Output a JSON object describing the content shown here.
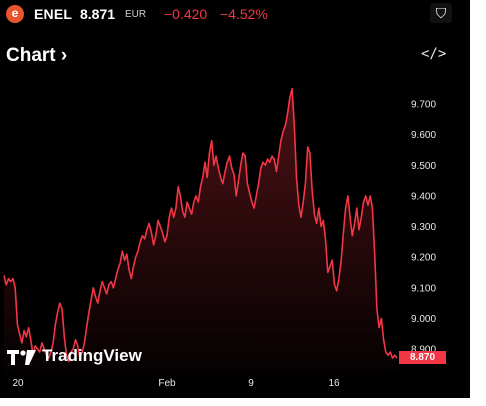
{
  "ticker": {
    "logo_letter": "e",
    "symbol": "ENEL",
    "price": "8.871",
    "currency": "EUR",
    "change": "−0.420",
    "change_pct": "−4.52%",
    "gem_icon": "⛉"
  },
  "chart_header": {
    "title": "Chart",
    "chevron": "›",
    "embed_label": "</>"
  },
  "branding": "TradingView",
  "last_price_tag": "8.870",
  "colors": {
    "background": "#000000",
    "line": "#f23645",
    "negative": "#f23645",
    "logo": "#e8542d"
  },
  "chart_data": {
    "type": "area",
    "ylim": [
      8.84,
      9.76
    ],
    "yticks": [
      "9.700",
      "9.600",
      "9.500",
      "9.400",
      "9.300",
      "9.200",
      "9.100",
      "9.000",
      "8.900"
    ],
    "xticks": [
      "20",
      "Feb",
      "9",
      "16"
    ],
    "series": [
      {
        "values": [
          9.14,
          9.11,
          9.13,
          9.12,
          9.13,
          9.1,
          8.98,
          8.95,
          8.92,
          8.96,
          8.94,
          8.97,
          8.93,
          8.88,
          8.91,
          8.9,
          8.89,
          8.92,
          8.9,
          8.88,
          8.87,
          8.89,
          8.92,
          8.98,
          9.02,
          9.05,
          9.03,
          8.94,
          8.88,
          8.86,
          8.89,
          8.9,
          8.93,
          8.91,
          8.87,
          8.89,
          8.92,
          8.97,
          9.02,
          9.06,
          9.1,
          9.07,
          9.05,
          9.09,
          9.12,
          9.1,
          9.08,
          9.11,
          9.12,
          9.1,
          9.13,
          9.16,
          9.18,
          9.22,
          9.19,
          9.21,
          9.16,
          9.13,
          9.17,
          9.2,
          9.22,
          9.25,
          9.27,
          9.26,
          9.29,
          9.31,
          9.28,
          9.24,
          9.27,
          9.32,
          9.3,
          9.28,
          9.25,
          9.27,
          9.33,
          9.36,
          9.33,
          9.36,
          9.43,
          9.4,
          9.35,
          9.33,
          9.38,
          9.36,
          9.34,
          9.38,
          9.4,
          9.38,
          9.43,
          9.46,
          9.51,
          9.46,
          9.54,
          9.58,
          9.5,
          9.53,
          9.49,
          9.46,
          9.44,
          9.48,
          9.51,
          9.53,
          9.49,
          9.47,
          9.4,
          9.45,
          9.5,
          9.54,
          9.53,
          9.44,
          9.41,
          9.38,
          9.36,
          9.4,
          9.44,
          9.49,
          9.51,
          9.5,
          9.52,
          9.51,
          9.53,
          9.52,
          9.48,
          9.53,
          9.58,
          9.61,
          9.63,
          9.67,
          9.72,
          9.75,
          9.63,
          9.46,
          9.37,
          9.33,
          9.38,
          9.44,
          9.56,
          9.54,
          9.42,
          9.34,
          9.31,
          9.36,
          9.3,
          9.32,
          9.26,
          9.15,
          9.17,
          9.19,
          9.11,
          9.09,
          9.13,
          9.19,
          9.28,
          9.36,
          9.4,
          9.33,
          9.27,
          9.31,
          9.36,
          9.29,
          9.33,
          9.38,
          9.4,
          9.37,
          9.4,
          9.36,
          9.21,
          9.03,
          8.97,
          9.0,
          8.93,
          8.89,
          8.88,
          8.89,
          8.87,
          8.88,
          8.87
        ]
      }
    ]
  }
}
